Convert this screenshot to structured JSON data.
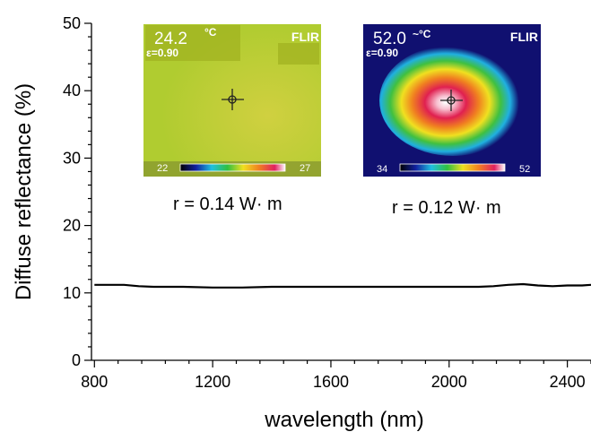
{
  "chart_data": {
    "type": "line",
    "xlabel": "wavelength (nm)",
    "ylabel": "Diffuse reflectance (%)",
    "xlim": [
      790,
      2480
    ],
    "ylim": [
      0,
      50
    ],
    "xticks": [
      800,
      1200,
      1600,
      2000,
      2400
    ],
    "yticks": [
      0,
      10,
      20,
      30,
      40,
      50
    ],
    "grid": false,
    "series": [
      {
        "color": "#000000",
        "x": [
          800,
          900,
          950,
          1000,
          1100,
          1200,
          1300,
          1400,
          1500,
          1600,
          1700,
          1800,
          1900,
          2000,
          2100,
          2150,
          2200,
          2250,
          2300,
          2350,
          2400,
          2450,
          2480
        ],
        "y": [
          11.2,
          11.2,
          11.0,
          10.9,
          10.9,
          10.8,
          10.8,
          10.9,
          10.9,
          10.9,
          10.9,
          10.9,
          10.9,
          10.9,
          10.9,
          11.0,
          11.2,
          11.3,
          11.1,
          11.0,
          11.1,
          11.1,
          11.2
        ]
      }
    ]
  },
  "insets": [
    {
      "temperature": "24.2",
      "unit": "°C",
      "emissivity": "ε=0.90",
      "brand": "FLIR",
      "scale_min": "22",
      "scale_max": "27",
      "label": "r = 0.14 W· m"
    },
    {
      "temperature": "52.0",
      "unit": "~°C",
      "emissivity": "ε=0.90",
      "brand": "FLIR",
      "scale_min": "34",
      "scale_max": "52",
      "label": "r = 0.12 W· m"
    }
  ],
  "colors": {
    "line": "#000000",
    "cool_background": "#b8d030",
    "hot_background": "#101070"
  }
}
